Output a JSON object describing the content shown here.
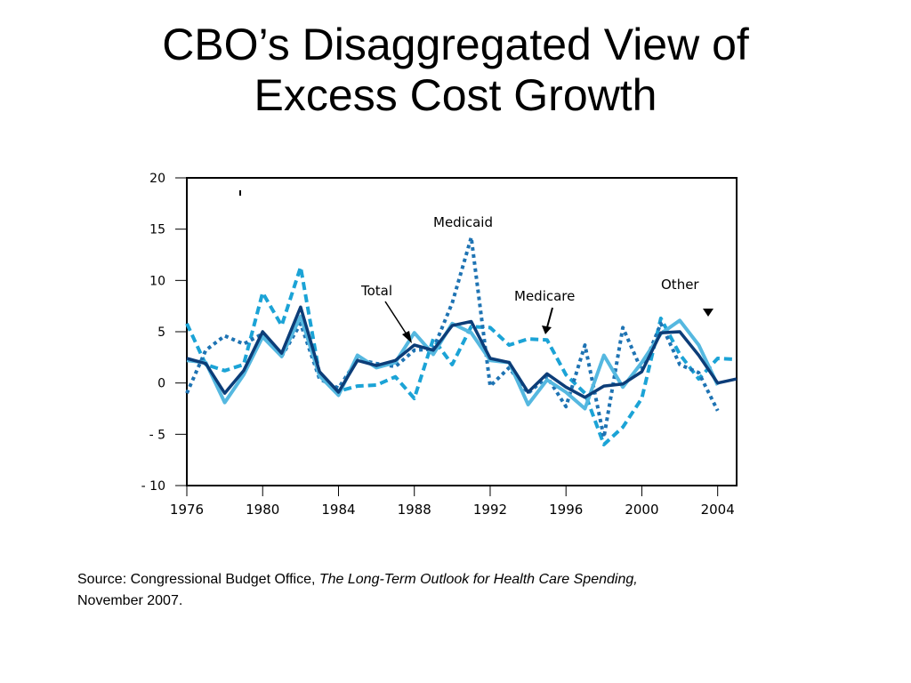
{
  "slide": {
    "title_line1": "CBO’s Disaggregated View of",
    "title_line2": "Excess Cost Growth"
  },
  "source": {
    "prefix": "Source: Congressional Budget Office, ",
    "publication": "The Long-Term Outlook for Health Care Spending,",
    "date": "November 2007."
  },
  "chart_data": {
    "type": "line",
    "title": "",
    "xlabel": "",
    "ylabel": "",
    "xlim": [
      1976,
      2005
    ],
    "ylim": [
      -10,
      20
    ],
    "x_ticks": [
      1976,
      1980,
      1984,
      1988,
      1992,
      1996,
      2000,
      2004
    ],
    "x_tick_labels": [
      "1976",
      "1980",
      "1984",
      "1988",
      "1992",
      "1996",
      "2000",
      "2004"
    ],
    "y_ticks": [
      20,
      15,
      10,
      5,
      0,
      -5,
      -10
    ],
    "y_tick_labels": [
      "20",
      "15",
      "10",
      "5",
      "0",
      "- 5",
      "- 10"
    ],
    "grid": false,
    "annotations": [
      {
        "text": "Medicaid",
        "series": "Medicaid"
      },
      {
        "text": "Total",
        "series": "Total",
        "arrow": true
      },
      {
        "text": "Medicare",
        "series": "Medicare",
        "arrow": true
      },
      {
        "text": "Other",
        "series": "Other",
        "arrow": true
      }
    ],
    "series": [
      {
        "name": "Other",
        "style": "dashed",
        "color": "#1ba3d6",
        "x": [
          1976,
          1977,
          1978,
          1979,
          1980,
          1981,
          1982,
          1983,
          1984,
          1985,
          1986,
          1987,
          1988,
          1989,
          1990,
          1991,
          1992,
          1993,
          1994,
          1995,
          1996,
          1997,
          1998,
          1999,
          2000,
          2001,
          2002,
          2003,
          2004,
          2005
        ],
        "y": [
          5.8,
          1.8,
          1.2,
          1.8,
          8.8,
          5.6,
          11.3,
          0.8,
          -0.8,
          -0.3,
          -0.2,
          0.6,
          -1.5,
          4.3,
          1.8,
          5.5,
          5.4,
          3.7,
          4.3,
          4.2,
          0.8,
          -1.0,
          -6.0,
          -4.3,
          -1.5,
          6.3,
          2.8,
          0.4,
          2.4,
          2.3
        ]
      },
      {
        "name": "Medicaid",
        "style": "dotted",
        "color": "#1e73b3",
        "x": [
          1976,
          1977,
          1978,
          1979,
          1980,
          1981,
          1982,
          1983,
          1984,
          1985,
          1986,
          1987,
          1988,
          1989,
          1990,
          1991,
          1992,
          1993,
          1994,
          1995,
          1996,
          1997,
          1998,
          1999,
          2000,
          2001,
          2002,
          2003,
          2004
        ],
        "y": [
          -1.0,
          3.2,
          4.6,
          3.8,
          4.8,
          2.6,
          5.8,
          0.4,
          -0.5,
          2.3,
          1.9,
          1.6,
          3.2,
          3.3,
          7.8,
          14.2,
          -0.3,
          1.5,
          -1.0,
          0.6,
          -2.3,
          3.7,
          -5.3,
          5.4,
          1.2,
          5.8,
          1.8,
          1.0,
          -2.7
        ]
      },
      {
        "name": "Medicare",
        "style": "solid",
        "color": "#55b8e0",
        "x": [
          1976,
          1977,
          1978,
          1979,
          1980,
          1981,
          1982,
          1983,
          1984,
          1985,
          1986,
          1987,
          1988,
          1989,
          1990,
          1991,
          1992,
          1993,
          1994,
          1995,
          1996,
          1997,
          1998,
          1999,
          2000,
          2001,
          2002,
          2003,
          2004
        ],
        "y": [
          2.2,
          2.0,
          -1.9,
          0.8,
          4.5,
          2.6,
          6.5,
          0.7,
          -1.2,
          2.7,
          1.5,
          2.0,
          4.9,
          2.8,
          5.8,
          4.9,
          2.2,
          2.0,
          -2.1,
          0.3,
          -0.9,
          -2.5,
          2.7,
          -0.4,
          2.0,
          4.8,
          6.1,
          3.7,
          -0.2
        ]
      },
      {
        "name": "Total",
        "style": "solid",
        "color": "#0c3d78",
        "x": [
          1976,
          1977,
          1978,
          1979,
          1980,
          1981,
          1982,
          1983,
          1984,
          1985,
          1986,
          1987,
          1988,
          1989,
          1990,
          1991,
          1992,
          1993,
          1994,
          1995,
          1996,
          1997,
          1998,
          1999,
          2000,
          2001,
          2002,
          2003,
          2004,
          2005
        ],
        "y": [
          2.4,
          1.9,
          -1.0,
          1.2,
          5.0,
          2.9,
          7.4,
          1.1,
          -0.9,
          2.2,
          1.7,
          2.2,
          3.7,
          3.2,
          5.6,
          6.0,
          2.4,
          2.0,
          -0.9,
          0.9,
          -0.4,
          -1.4,
          -0.3,
          -0.1,
          1.1,
          4.9,
          5.0,
          2.7,
          0.0,
          0.4
        ]
      }
    ]
  }
}
